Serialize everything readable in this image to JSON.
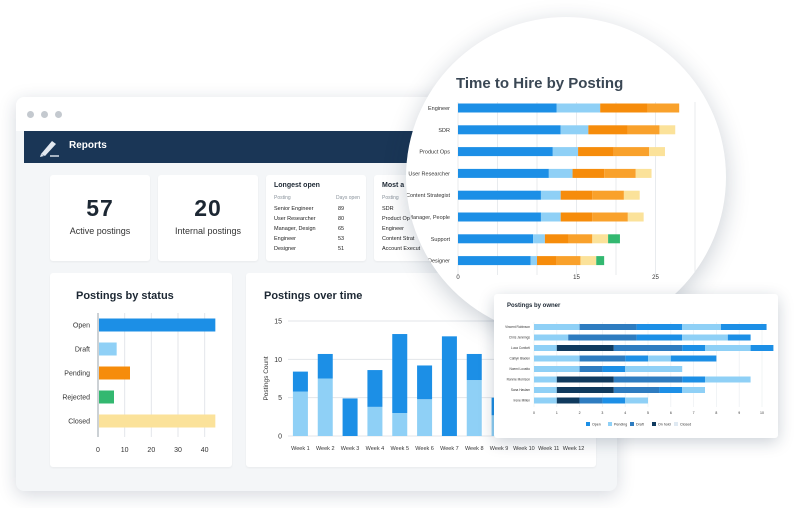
{
  "app": {
    "title": "Reports"
  },
  "stats": [
    {
      "value": "57",
      "label": "Active postings"
    },
    {
      "value": "20",
      "label": "Internal postings"
    }
  ],
  "longest_open": {
    "title": "Longest open",
    "col_posting": "Posting",
    "col_days": "Days open",
    "rows": [
      {
        "name": "Senior Engineer",
        "days": "89"
      },
      {
        "name": "User Researcher",
        "days": "80"
      },
      {
        "name": "Manager, Design",
        "days": "65"
      },
      {
        "name": "Engineer",
        "days": "53"
      },
      {
        "name": "Designer",
        "days": "51"
      }
    ]
  },
  "most_active": {
    "title": "Most a",
    "col_posting": "Posting",
    "rows": [
      "SDR",
      "Product Op",
      "Engineer",
      "Content Strat",
      "Account Execut"
    ]
  },
  "colors": {
    "navy": "#1a3656",
    "blue": "#1c8fe6",
    "light_blue": "#8fd0f6",
    "orange": "#f68c0b",
    "green": "#33b870",
    "pale_yellow": "#fbe29a",
    "dark_navy": "#0f3a5e",
    "steel_blue": "#2e7cc0"
  },
  "chart_data": [
    {
      "type": "bar",
      "orientation": "horizontal",
      "title": "Postings by status",
      "categories": [
        "Open",
        "Draft",
        "Pending",
        "Rejected",
        "Closed"
      ],
      "values": [
        44,
        7,
        12,
        6,
        44
      ],
      "colors": [
        "#1c8fe6",
        "#8fd0f6",
        "#f68c0b",
        "#33b870",
        "#fbe29a"
      ],
      "xlim": [
        0,
        45
      ],
      "xticks": [
        "0",
        "10",
        "20",
        "30",
        "40"
      ],
      "grid": true
    },
    {
      "type": "bar",
      "stacked": true,
      "title": "Postings over time",
      "ylabel": "Postings Count",
      "categories": [
        "Week 1",
        "Week 2",
        "Week 3",
        "Week 4",
        "Week 5",
        "Week 6",
        "Week 7",
        "Week 8",
        "Week 9",
        "Week 10",
        "Week 11",
        "Week 12"
      ],
      "series": [
        {
          "values": [
            5.8,
            7.5,
            0,
            3.8,
            3,
            4.8,
            0,
            7.3,
            2.7,
            2,
            2,
            2
          ],
          "color": "#8fd0f6"
        },
        {
          "values": [
            2.6,
            3.2,
            4.9,
            4.8,
            10.3,
            4.4,
            13,
            3.4,
            2.3,
            2,
            2,
            2
          ],
          "color": "#1c8fe6"
        }
      ],
      "ylim": [
        0,
        15
      ],
      "yticks": [
        "0",
        "5",
        "10",
        "15"
      ],
      "grid": true
    },
    {
      "type": "bar",
      "stacked": true,
      "orientation": "horizontal",
      "title": "Time to Hire by Posting",
      "categories": [
        "Engineer",
        "SDR",
        "Product Ops",
        "User Researcher",
        "Content Strategist",
        "Manager, People",
        "Support",
        "Designer"
      ],
      "series": [
        {
          "values": [
            12.5,
            13,
            12,
            11.5,
            10.5,
            10.5,
            9.5,
            9.2
          ],
          "color": "#1c8fe6"
        },
        {
          "values": [
            5.5,
            3.5,
            3.2,
            3,
            2.5,
            2.5,
            1.5,
            0.8
          ],
          "color": "#8fd0f6"
        },
        {
          "values": [
            6,
            5,
            4.5,
            4,
            4,
            4,
            3,
            2.5
          ],
          "color": "#f68c0b"
        },
        {
          "values": [
            4,
            4,
            4.5,
            4,
            4,
            4.5,
            3,
            3
          ],
          "color": "#f9a12b"
        },
        {
          "values": [
            0,
            2,
            2,
            2,
            2,
            2,
            2,
            2
          ],
          "color": "#fbe29a"
        },
        {
          "values": [
            0,
            0,
            0,
            0,
            0,
            0,
            1.5,
            1
          ],
          "color": "#33b870"
        }
      ],
      "xlim": [
        0,
        30
      ],
      "xticks": [
        "0",
        "15",
        "25"
      ],
      "grid": true
    },
    {
      "type": "bar",
      "stacked": true,
      "orientation": "horizontal",
      "title": "Postings by owner",
      "categories": [
        "Vincent Robinson",
        "Chris Jennings",
        "Luca Conforti",
        "Caitlyn Bladen",
        "Noemi Lovatto",
        "Ronnie Morrison",
        "Sana Haslam",
        "Irene Millen"
      ],
      "series": [
        {
          "values": [
            0,
            0,
            0,
            0,
            0,
            0,
            0,
            0
          ],
          "color": "#1c8fe6"
        },
        {
          "values": [
            2,
            1.5,
            1,
            2,
            2,
            1,
            1,
            1
          ],
          "color": "#8fd0f6"
        },
        {
          "values": [
            0,
            0,
            2.5,
            0,
            0,
            2.5,
            2.5,
            1
          ],
          "color": "#0f3a5e"
        },
        {
          "values": [
            2.5,
            3,
            3,
            2,
            1,
            3,
            2,
            1
          ],
          "color": "#2e7cc0"
        },
        {
          "values": [
            2,
            2,
            1,
            1,
            1,
            1,
            1,
            1
          ],
          "color": "#1c8fe6"
        },
        {
          "values": [
            1.7,
            2,
            2,
            1,
            2.5,
            2,
            1,
            1
          ],
          "color": "#8fd0f6"
        },
        {
          "values": [
            2,
            1,
            1,
            2,
            0,
            0,
            0,
            0
          ],
          "color": "#1c8fe6"
        }
      ],
      "xlim": [
        0,
        10
      ],
      "xticks": [
        "0",
        "1",
        "2",
        "3",
        "4",
        "5",
        "6",
        "7",
        "8",
        "9",
        "10"
      ],
      "legend": {
        "placement": "bottom",
        "items": [
          {
            "label": "Open",
            "color": "#1c8fe6"
          },
          {
            "label": "Pending",
            "color": "#8fd0f6"
          },
          {
            "label": "Draft",
            "color": "#2e7cc0"
          },
          {
            "label": "On hold",
            "color": "#0f3a5e"
          },
          {
            "label": "Closed",
            "color": "#dfe9f2"
          }
        ]
      }
    }
  ]
}
